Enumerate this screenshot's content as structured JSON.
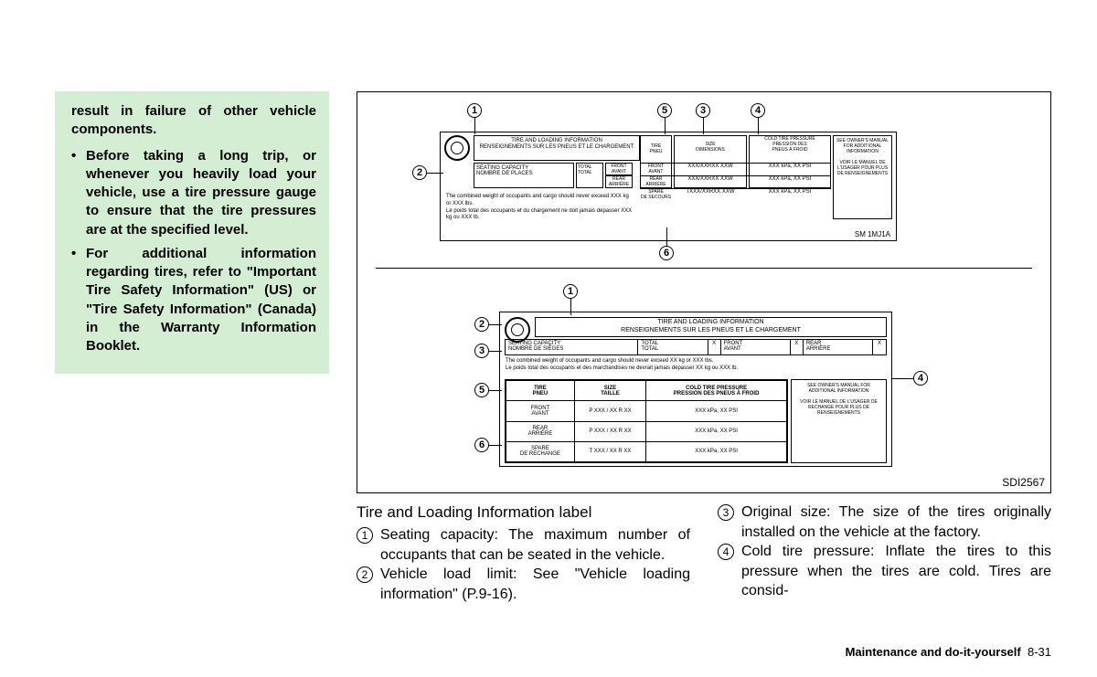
{
  "greenbox": {
    "intro": "result in failure of other vehicle components.",
    "bullets": [
      "Before taking a long trip, or whenever you heavily load your vehicle, use a tire pressure gauge to ensure that the tire pressures are at the specified level.",
      "For additional information regarding tires, refer to \"Important Tire Safety Information\" (US) or \"Tire Safety Information\" (Canada) in the Warranty Information Booklet."
    ]
  },
  "diagram": {
    "figcode": "SDI2567",
    "label1": {
      "header_en": "TIRE AND LOADING INFORMATION",
      "header_fr": "RENSEIGNEMENTS SUR LES PNEUS ET LE CHARGEMENT",
      "seating_en": "SEATING CAPACITY",
      "seating_fr": "NOMBRE DE PLACES",
      "total": "TOTAL\nTOTAL",
      "front": "FRONT\nAVANT",
      "rear": "REAR\nARRIÈRE",
      "x": "X",
      "tire": "TIRE\nPNEU",
      "size": "SIZE\nDIMENSIONS",
      "cold": "COLD TIRE PRESSURE\nPRESSION DES\nPNEUS À FROID",
      "owner": "SEE OWNER'S MANUAL FOR ADDITIONAL INFORMATION\n\nVOIR LE MANUEL DE L'USAGER POUR PLUS DE RENSEIGNEMENTS",
      "rows": [
        {
          "label": "FRONT\nAVANT",
          "size": "XXX/XXRXX XXW",
          "press": "XXX kPa, XX PSI"
        },
        {
          "label": "REAR\nARRIÈRE",
          "size": "XXX/XXRXX XXW",
          "press": "XXX kPa, XX PSI"
        },
        {
          "label": "SPARE\nDE SECOURS",
          "size": "TXXX/XXRXX XXW",
          "press": "XXX kPa, XX PSI"
        }
      ],
      "weight_en": "The combined weight of occupants and cargo should never exceed XXX kg or XXX lbs.",
      "weight_fr": "Le poids total des occupants et du chargement ne doit jamais dépasser XXX kg ou XXX lb.",
      "code": "SM 1MJ1A"
    },
    "label2": {
      "header_en": "TIRE AND LOADING INFORMATION",
      "header_fr": "RENSEIGNEMENTS SUR LES PNEUS ET LE CHARGEMENT",
      "seating_en": "SEATING CAPACITY",
      "seating_fr": "NOMBRE DE SIÈGES",
      "total": "TOTAL\nTOTAL",
      "x": "X",
      "front": "FRONT\nAVANT",
      "rear": "REAR\nARRIÈRE",
      "weight_en": "The combined weight of occupants and cargo should never exceed XX kg or XXX lbs.",
      "weight_fr": "Le poids total des occupants et des marchandises ne devrait jamais dépasser XX kg ou XXX lb.",
      "th_tire": "TIRE\nPNEU",
      "th_size": "SIZE\nTAILLE",
      "th_cold": "COLD TIRE PRESSURE\nPRESSION DES PNEUS À FROID",
      "rows": [
        {
          "label": "FRONT\nAVANT",
          "size": "P XXX / XX R XX",
          "press": "XXX kPa, XX PSI"
        },
        {
          "label": "REAR\nARRIÈRE",
          "size": "P XXX / XX R XX",
          "press": "XXX kPa, XX PSI"
        },
        {
          "label": "SPARE\nDE RECHANGE",
          "size": "T XXX / XX R XX",
          "press": "XXX kPa, XX PSI"
        }
      ],
      "owner": "SEE OWNER'S MANUAL FOR ADDITIONAL INFORMATION\n\nVOIR LE MANUEL DE L'USAGER DE RECHANGE POUR PLUS DE RENSEIGNEMENTS"
    },
    "callouts_top": [
      "1",
      "2",
      "3",
      "4",
      "5",
      "6"
    ],
    "callouts_bottom": [
      "1",
      "2",
      "3",
      "4",
      "5",
      "6"
    ]
  },
  "caption": {
    "heading": "Tire and Loading Information label",
    "items": [
      {
        "num": "1",
        "text": "Seating capacity: The maximum number of occupants that can be seated in the vehicle."
      },
      {
        "num": "2",
        "text": "Vehicle load limit: See \"Vehicle loading information\" (P.9-16)."
      },
      {
        "num": "3",
        "text": "Original size: The size of the tires originally installed on the vehicle at the factory."
      },
      {
        "num": "4",
        "text": "Cold tire pressure: Inflate the tires to this pressure when the tires are cold. Tires are consid-"
      }
    ]
  },
  "footer": {
    "section": "Maintenance and do-it-yourself",
    "page": "8-31"
  }
}
